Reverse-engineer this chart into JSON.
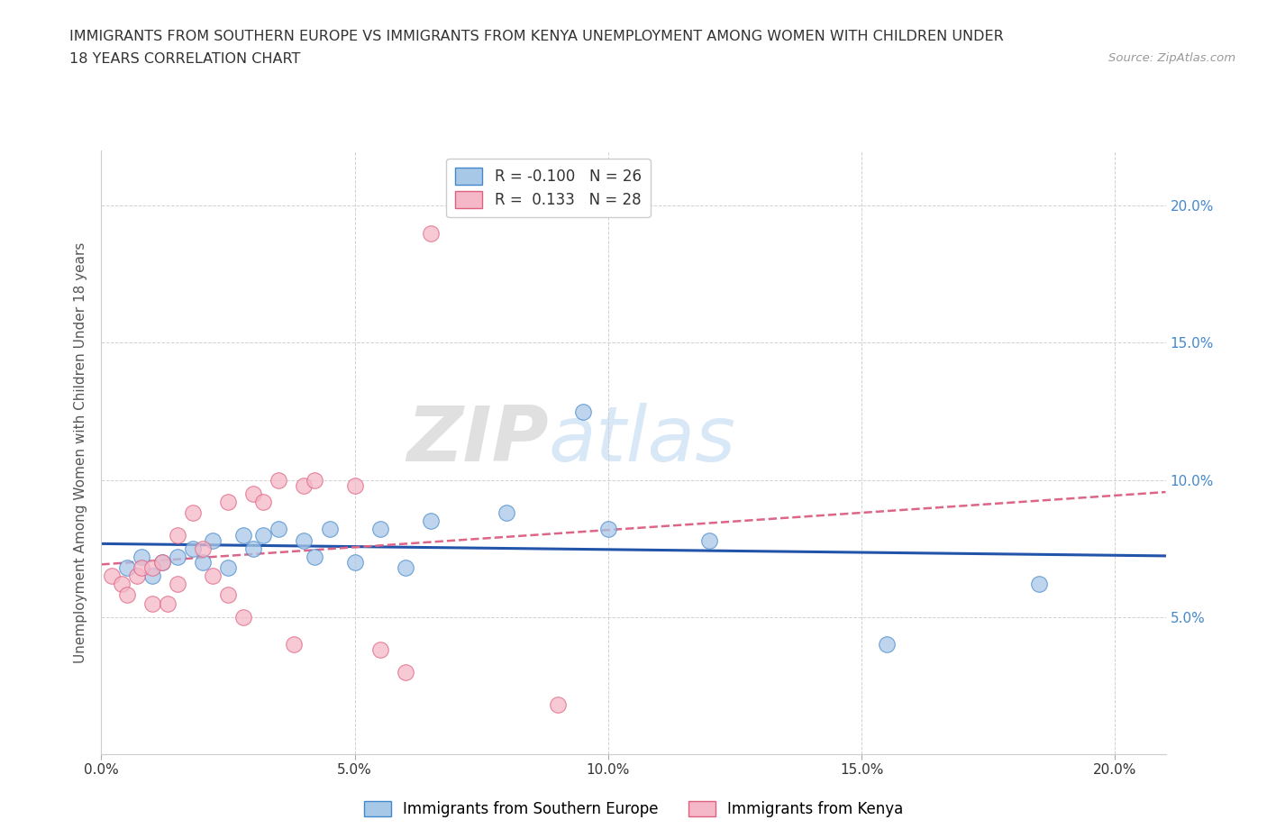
{
  "title_line1": "IMMIGRANTS FROM SOUTHERN EUROPE VS IMMIGRANTS FROM KENYA UNEMPLOYMENT AMONG WOMEN WITH CHILDREN UNDER",
  "title_line2": "18 YEARS CORRELATION CHART",
  "source": "Source: ZipAtlas.com",
  "ylabel": "Unemployment Among Women with Children Under 18 years",
  "xlim": [
    0.0,
    0.21
  ],
  "ylim": [
    0.0,
    0.22
  ],
  "ytick_vals": [
    0.0,
    0.05,
    0.1,
    0.15,
    0.2
  ],
  "xtick_vals": [
    0.0,
    0.05,
    0.1,
    0.15,
    0.2
  ],
  "background_color": "#ffffff",
  "grid_color": "#cccccc",
  "watermark_zip": "ZIP",
  "watermark_atlas": "atlas",
  "blue_color": "#a8c8e8",
  "pink_color": "#f4b8c8",
  "blue_edge_color": "#4488cc",
  "pink_edge_color": "#e06080",
  "blue_line_color": "#2255aa",
  "pink_line_color": "#dd6688",
  "tick_color": "#4488cc",
  "R_blue": -0.1,
  "N_blue": 26,
  "R_pink": 0.133,
  "N_pink": 28,
  "legend_label_blue": "Immigrants from Southern Europe",
  "legend_label_pink": "Immigrants from Kenya",
  "blue_scatter_x": [
    0.005,
    0.008,
    0.01,
    0.012,
    0.015,
    0.018,
    0.02,
    0.022,
    0.025,
    0.028,
    0.03,
    0.032,
    0.035,
    0.04,
    0.042,
    0.045,
    0.05,
    0.055,
    0.06,
    0.065,
    0.08,
    0.095,
    0.1,
    0.12,
    0.155,
    0.185
  ],
  "blue_scatter_y": [
    0.068,
    0.072,
    0.065,
    0.07,
    0.072,
    0.075,
    0.07,
    0.078,
    0.068,
    0.08,
    0.075,
    0.08,
    0.082,
    0.078,
    0.072,
    0.082,
    0.07,
    0.082,
    0.068,
    0.085,
    0.088,
    0.125,
    0.082,
    0.078,
    0.04,
    0.062
  ],
  "pink_scatter_x": [
    0.002,
    0.004,
    0.005,
    0.007,
    0.008,
    0.01,
    0.01,
    0.012,
    0.013,
    0.015,
    0.015,
    0.018,
    0.02,
    0.022,
    0.025,
    0.025,
    0.028,
    0.03,
    0.032,
    0.035,
    0.038,
    0.04,
    0.042,
    0.05,
    0.055,
    0.06,
    0.065,
    0.09
  ],
  "pink_scatter_y": [
    0.065,
    0.062,
    0.058,
    0.065,
    0.068,
    0.068,
    0.055,
    0.07,
    0.055,
    0.062,
    0.08,
    0.088,
    0.075,
    0.065,
    0.058,
    0.092,
    0.05,
    0.095,
    0.092,
    0.1,
    0.04,
    0.098,
    0.1,
    0.098,
    0.038,
    0.03,
    0.19,
    0.018
  ]
}
